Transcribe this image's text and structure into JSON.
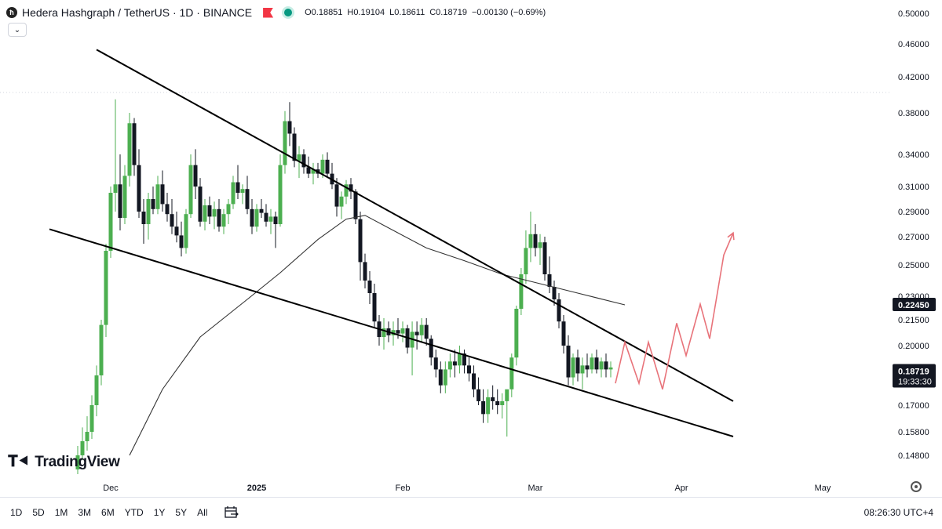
{
  "header": {
    "symbol_icon": "hbar-logo-icon",
    "title": "Hedera Hashgraph / TetherUS · 1D · BINANCE",
    "ohlc": {
      "o_label": "O",
      "o": "0.18851",
      "h_label": "H",
      "h": "0.19104",
      "l_label": "L",
      "l": "0.18611",
      "c_label": "C",
      "c": "0.18719",
      "change": "−0.00130 (−0.69%)"
    }
  },
  "price_axis": [
    "0.50000",
    "0.46000",
    "0.42000",
    "0.38000",
    "0.34000",
    "0.31000",
    "0.29000",
    "0.27000",
    "0.25000",
    "0.23000",
    "0.21500",
    "0.20000",
    "0.17000",
    "0.15800",
    "0.14800"
  ],
  "price_tags": {
    "ma": {
      "value": "0.22450",
      "color": "#131722"
    },
    "last": {
      "value": "0.18719",
      "countdown": "19:33:30",
      "color": "#131722"
    }
  },
  "time_axis": [
    "Dec",
    "2025",
    "Feb",
    "Mar",
    "Apr",
    "May"
  ],
  "bottom_bar": {
    "ranges": [
      "1D",
      "5D",
      "1M",
      "3M",
      "6M",
      "YTD",
      "1Y",
      "5Y",
      "All"
    ],
    "clock": "08:26:30 UTC+4"
  },
  "brand": {
    "name": "TradingView",
    "mark": "TV"
  },
  "colors": {
    "up": "#4caf50",
    "down": "#131722",
    "trend": "#000000",
    "ma": "#333333",
    "projection": "#e8737a"
  },
  "chart_data": {
    "type": "candlestick",
    "symbol": "HBARUSDT",
    "interval": "1D",
    "ylim": [
      0.145,
      0.5
    ],
    "x_range": [
      "2024-11-20",
      "2025-05-10"
    ],
    "candles": [
      [
        "2024-11-24",
        0.142,
        0.152,
        0.14,
        0.148
      ],
      [
        "2024-11-25",
        0.148,
        0.16,
        0.146,
        0.154
      ],
      [
        "2024-11-26",
        0.154,
        0.165,
        0.15,
        0.158
      ],
      [
        "2024-11-27",
        0.158,
        0.175,
        0.155,
        0.17
      ],
      [
        "2024-11-28",
        0.17,
        0.19,
        0.165,
        0.185
      ],
      [
        "2024-11-29",
        0.185,
        0.215,
        0.18,
        0.212
      ],
      [
        "2024-11-30",
        0.212,
        0.265,
        0.205,
        0.26
      ],
      [
        "2024-12-01",
        0.26,
        0.31,
        0.255,
        0.305
      ],
      [
        "2024-12-02",
        0.305,
        0.395,
        0.29,
        0.312
      ],
      [
        "2024-12-03",
        0.312,
        0.34,
        0.275,
        0.285
      ],
      [
        "2024-12-04",
        0.285,
        0.33,
        0.28,
        0.32
      ],
      [
        "2024-12-05",
        0.32,
        0.38,
        0.31,
        0.37
      ],
      [
        "2024-12-06",
        0.37,
        0.375,
        0.32,
        0.33
      ],
      [
        "2024-12-07",
        0.33,
        0.345,
        0.285,
        0.29
      ],
      [
        "2024-12-08",
        0.29,
        0.3,
        0.265,
        0.28
      ],
      [
        "2024-12-09",
        0.28,
        0.305,
        0.268,
        0.3
      ],
      [
        "2024-12-10",
        0.3,
        0.31,
        0.288,
        0.292
      ],
      [
        "2024-12-11",
        0.292,
        0.32,
        0.288,
        0.312
      ],
      [
        "2024-12-12",
        0.312,
        0.325,
        0.29,
        0.296
      ],
      [
        "2024-12-13",
        0.296,
        0.305,
        0.282,
        0.288
      ],
      [
        "2024-12-14",
        0.288,
        0.3,
        0.272,
        0.278
      ],
      [
        "2024-12-15",
        0.278,
        0.29,
        0.266,
        0.271
      ],
      [
        "2024-12-16",
        0.271,
        0.282,
        0.256,
        0.262
      ],
      [
        "2024-12-17",
        0.262,
        0.292,
        0.258,
        0.288
      ],
      [
        "2024-12-18",
        0.288,
        0.34,
        0.285,
        0.33
      ],
      [
        "2024-12-19",
        0.33,
        0.345,
        0.3,
        0.31
      ],
      [
        "2024-12-20",
        0.31,
        0.318,
        0.278,
        0.282
      ],
      [
        "2024-12-21",
        0.282,
        0.3,
        0.275,
        0.295
      ],
      [
        "2024-12-22",
        0.295,
        0.302,
        0.28,
        0.286
      ],
      [
        "2024-12-23",
        0.286,
        0.298,
        0.276,
        0.292
      ],
      [
        "2024-12-24",
        0.292,
        0.3,
        0.274,
        0.278
      ],
      [
        "2024-12-25",
        0.278,
        0.292,
        0.272,
        0.288
      ],
      [
        "2024-12-26",
        0.288,
        0.3,
        0.28,
        0.296
      ],
      [
        "2024-12-27",
        0.296,
        0.32,
        0.292,
        0.314
      ],
      [
        "2024-12-28",
        0.314,
        0.33,
        0.3,
        0.305
      ],
      [
        "2024-12-29",
        0.305,
        0.312,
        0.296,
        0.308
      ],
      [
        "2024-12-30",
        0.308,
        0.32,
        0.288,
        0.292
      ],
      [
        "2024-12-31",
        0.292,
        0.3,
        0.272,
        0.278
      ],
      [
        "2025-01-01",
        0.278,
        0.296,
        0.274,
        0.292
      ],
      [
        "2025-01-02",
        0.292,
        0.3,
        0.285,
        0.289
      ],
      [
        "2025-01-03",
        0.289,
        0.296,
        0.278,
        0.282
      ],
      [
        "2025-01-04",
        0.282,
        0.292,
        0.272,
        0.286
      ],
      [
        "2025-01-05",
        0.286,
        0.29,
        0.262,
        0.28
      ],
      [
        "2025-01-06",
        0.28,
        0.34,
        0.278,
        0.33
      ],
      [
        "2025-01-07",
        0.33,
        0.382,
        0.322,
        0.372
      ],
      [
        "2025-01-08",
        0.372,
        0.392,
        0.348,
        0.36
      ],
      [
        "2025-01-09",
        0.36,
        0.366,
        0.328,
        0.334
      ],
      [
        "2025-01-10",
        0.334,
        0.348,
        0.318,
        0.34
      ],
      [
        "2025-01-11",
        0.34,
        0.345,
        0.322,
        0.328
      ],
      [
        "2025-01-12",
        0.328,
        0.338,
        0.318,
        0.322
      ],
      [
        "2025-01-13",
        0.322,
        0.332,
        0.312,
        0.326
      ],
      [
        "2025-01-14",
        0.326,
        0.332,
        0.318,
        0.322
      ],
      [
        "2025-01-15",
        0.322,
        0.34,
        0.318,
        0.335
      ],
      [
        "2025-01-16",
        0.335,
        0.342,
        0.318,
        0.322
      ],
      [
        "2025-01-17",
        0.322,
        0.332,
        0.308,
        0.312
      ],
      [
        "2025-01-18",
        0.312,
        0.318,
        0.286,
        0.294
      ],
      [
        "2025-01-19",
        0.294,
        0.306,
        0.284,
        0.302
      ],
      [
        "2025-01-20",
        0.302,
        0.316,
        0.296,
        0.312
      ],
      [
        "2025-01-21",
        0.312,
        0.318,
        0.3,
        0.306
      ],
      [
        "2025-01-22",
        0.306,
        0.308,
        0.28,
        0.284
      ],
      [
        "2025-01-23",
        0.284,
        0.29,
        0.24,
        0.252
      ],
      [
        "2025-01-24",
        0.252,
        0.258,
        0.235,
        0.24
      ],
      [
        "2025-01-25",
        0.24,
        0.246,
        0.225,
        0.232
      ],
      [
        "2025-01-26",
        0.232,
        0.238,
        0.21,
        0.214
      ],
      [
        "2025-01-27",
        0.214,
        0.218,
        0.2,
        0.205
      ],
      [
        "2025-01-28",
        0.205,
        0.216,
        0.198,
        0.21
      ],
      [
        "2025-01-29",
        0.21,
        0.214,
        0.202,
        0.206
      ],
      [
        "2025-01-30",
        0.206,
        0.214,
        0.2,
        0.209
      ],
      [
        "2025-01-31",
        0.209,
        0.216,
        0.204,
        0.207
      ],
      [
        "2025-02-01",
        0.207,
        0.214,
        0.202,
        0.21
      ],
      [
        "2025-02-02",
        0.21,
        0.212,
        0.196,
        0.199
      ],
      [
        "2025-02-03",
        0.199,
        0.214,
        0.185,
        0.208
      ],
      [
        "2025-02-04",
        0.208,
        0.214,
        0.198,
        0.206
      ],
      [
        "2025-02-05",
        0.206,
        0.216,
        0.202,
        0.212
      ],
      [
        "2025-02-06",
        0.212,
        0.216,
        0.2,
        0.204
      ],
      [
        "2025-02-07",
        0.204,
        0.206,
        0.19,
        0.194
      ],
      [
        "2025-02-08",
        0.194,
        0.198,
        0.184,
        0.188
      ],
      [
        "2025-02-09",
        0.188,
        0.192,
        0.176,
        0.18
      ],
      [
        "2025-02-10",
        0.18,
        0.192,
        0.176,
        0.188
      ],
      [
        "2025-02-11",
        0.188,
        0.196,
        0.184,
        0.192
      ],
      [
        "2025-02-12",
        0.192,
        0.198,
        0.184,
        0.19
      ],
      [
        "2025-02-13",
        0.19,
        0.2,
        0.186,
        0.196
      ],
      [
        "2025-02-14",
        0.196,
        0.198,
        0.186,
        0.19
      ],
      [
        "2025-02-15",
        0.19,
        0.194,
        0.182,
        0.186
      ],
      [
        "2025-02-16",
        0.186,
        0.19,
        0.174,
        0.178
      ],
      [
        "2025-02-17",
        0.178,
        0.184,
        0.17,
        0.172
      ],
      [
        "2025-02-18",
        0.172,
        0.178,
        0.162,
        0.166
      ],
      [
        "2025-02-19",
        0.166,
        0.178,
        0.162,
        0.174
      ],
      [
        "2025-02-20",
        0.174,
        0.18,
        0.168,
        0.172
      ],
      [
        "2025-02-21",
        0.172,
        0.178,
        0.166,
        0.17
      ],
      [
        "2025-02-22",
        0.17,
        0.176,
        0.164,
        0.172
      ],
      [
        "2025-02-23",
        0.172,
        0.176,
        0.156,
        0.178
      ],
      [
        "2025-02-24",
        0.178,
        0.196,
        0.174,
        0.194
      ],
      [
        "2025-02-25",
        0.194,
        0.224,
        0.19,
        0.222
      ],
      [
        "2025-02-26",
        0.222,
        0.248,
        0.218,
        0.244
      ],
      [
        "2025-02-27",
        0.244,
        0.275,
        0.238,
        0.262
      ],
      [
        "2025-02-28",
        0.262,
        0.29,
        0.252,
        0.272
      ],
      [
        "2025-03-01",
        0.272,
        0.28,
        0.256,
        0.262
      ],
      [
        "2025-03-02",
        0.262,
        0.272,
        0.25,
        0.266
      ],
      [
        "2025-03-03",
        0.266,
        0.27,
        0.24,
        0.244
      ],
      [
        "2025-03-04",
        0.244,
        0.256,
        0.232,
        0.236
      ],
      [
        "2025-03-05",
        0.236,
        0.24,
        0.224,
        0.228
      ],
      [
        "2025-03-06",
        0.228,
        0.232,
        0.21,
        0.214
      ],
      [
        "2025-03-07",
        0.214,
        0.218,
        0.196,
        0.2
      ],
      [
        "2025-03-08",
        0.2,
        0.206,
        0.18,
        0.184
      ],
      [
        "2025-03-09",
        0.184,
        0.196,
        0.18,
        0.194
      ],
      [
        "2025-03-10",
        0.194,
        0.198,
        0.182,
        0.186
      ],
      [
        "2025-03-11",
        0.186,
        0.194,
        0.178,
        0.19
      ],
      [
        "2025-03-12",
        0.19,
        0.196,
        0.184,
        0.188
      ],
      [
        "2025-03-13",
        0.188,
        0.196,
        0.186,
        0.194
      ],
      [
        "2025-03-14",
        0.194,
        0.198,
        0.186,
        0.188
      ],
      [
        "2025-03-15",
        0.188,
        0.194,
        0.184,
        0.192
      ],
      [
        "2025-03-16",
        0.192,
        0.196,
        0.184,
        0.188
      ],
      [
        "2025-03-17",
        0.188,
        0.192,
        0.184,
        0.189
      ]
    ],
    "overlays": [
      {
        "name": "",
        "type": "moving_average",
        "points": [
          [
            "2024-12-05",
            0.148
          ],
          [
            "2024-12-12",
            0.178
          ],
          [
            "2024-12-20",
            0.205
          ],
          [
            "2024-12-30",
            0.228
          ],
          [
            "2025-01-06",
            0.245
          ],
          [
            "2025-01-14",
            0.268
          ],
          [
            "2025-01-20",
            0.284
          ],
          [
            "2025-01-24",
            0.287
          ],
          [
            "2025-01-30",
            0.275
          ],
          [
            "2025-02-06",
            0.262
          ],
          [
            "2025-02-14",
            0.253
          ],
          [
            "2025-02-22",
            0.244
          ],
          [
            "2025-03-02",
            0.238
          ],
          [
            "2025-03-10",
            0.232
          ],
          [
            "2025-03-20",
            0.2245
          ]
        ]
      }
    ],
    "trendlines": [
      {
        "name": "",
        "points": [
          [
            "2024-11-28",
            0.453
          ],
          [
            "2025-04-12",
            0.172
          ]
        ]
      },
      {
        "name": "",
        "points": [
          [
            "2024-11-18",
            0.276
          ],
          [
            "2025-04-12",
            0.156
          ]
        ]
      }
    ],
    "projection": [
      [
        "2025-03-18",
        0.181
      ],
      [
        "2025-03-20",
        0.202
      ],
      [
        "2025-03-23",
        0.181
      ],
      [
        "2025-03-25",
        0.202
      ],
      [
        "2025-03-28",
        0.178
      ],
      [
        "2025-03-31",
        0.213
      ],
      [
        "2025-04-02",
        0.195
      ],
      [
        "2025-04-05",
        0.225
      ],
      [
        "2025-04-07",
        0.204
      ],
      [
        "2025-04-10",
        0.257
      ],
      [
        "2025-04-12",
        0.273
      ]
    ]
  }
}
